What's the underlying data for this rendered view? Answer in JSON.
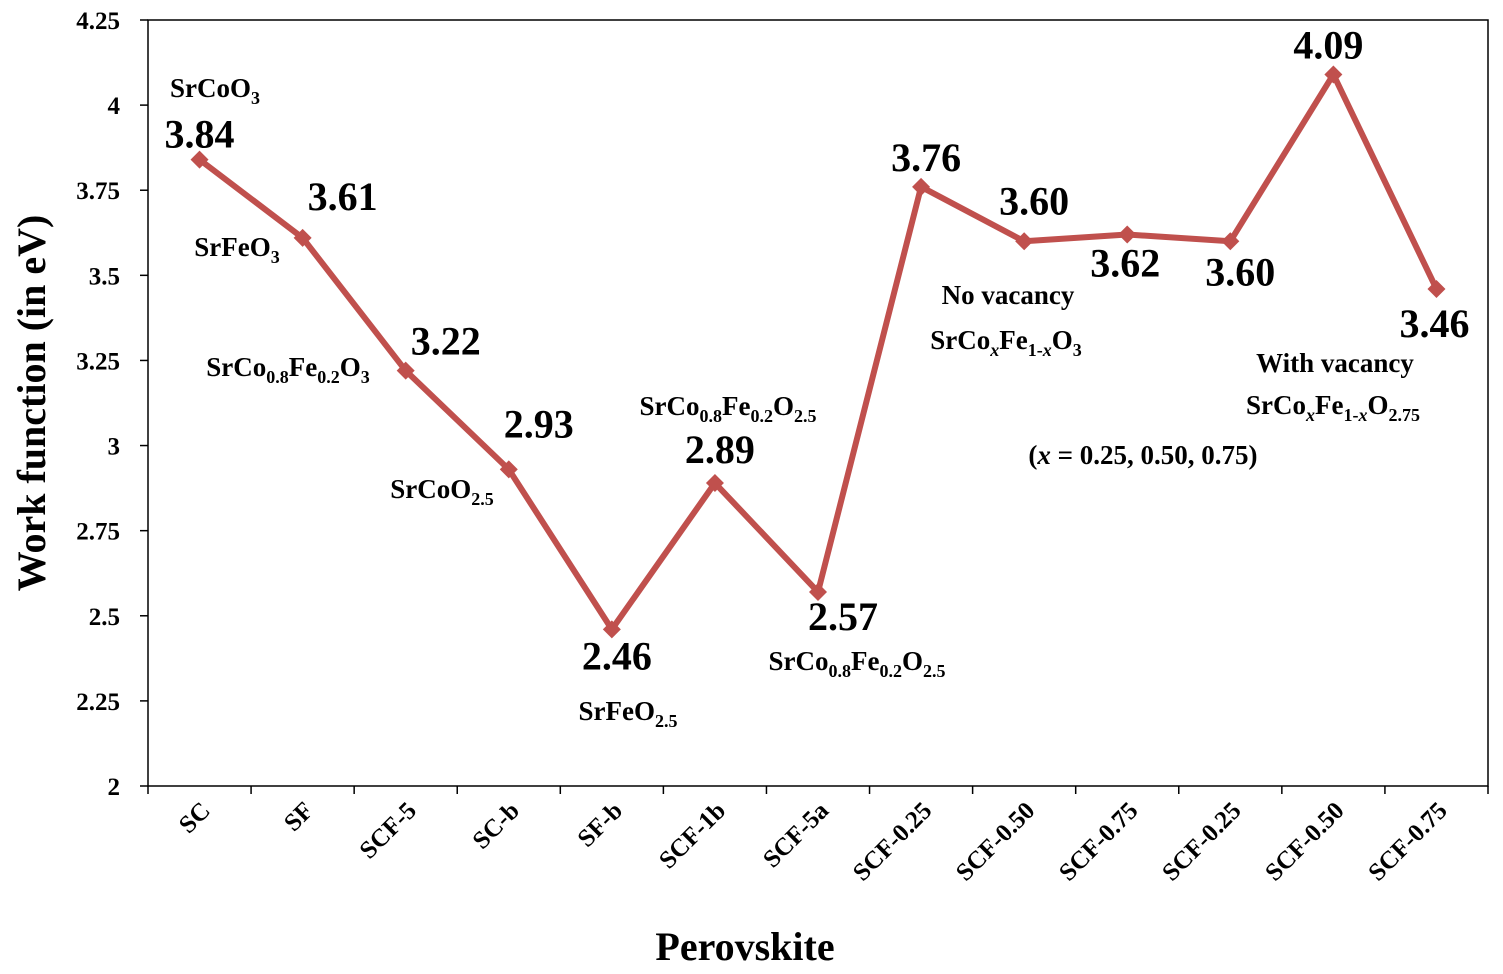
{
  "chart_data": {
    "type": "line",
    "xlabel": "Perovskite",
    "ylabel": "Work function (in eV)",
    "ylim": [
      2,
      4.25
    ],
    "yticks": [
      "2",
      "2.25",
      "2.5",
      "2.75",
      "3",
      "3.25",
      "3.5",
      "3.75",
      "4",
      "4.25"
    ],
    "grid": false,
    "legend": "none",
    "line_color": "#C0504D",
    "categories": [
      "SC",
      "SF",
      "SCF-5",
      "SC-b",
      "SF-b",
      "SCF-1b",
      "SCF-5a",
      "SCF-0.25",
      "SCF-0.50",
      "SCF-0.75",
      "SCF-0.25",
      "SCF-0.50",
      "SCF-0.75"
    ],
    "values": [
      3.84,
      3.61,
      3.22,
      2.93,
      2.46,
      2.89,
      2.57,
      3.76,
      3.6,
      3.62,
      3.6,
      4.09,
      3.46
    ],
    "data_labels": [
      "3.84",
      "3.61",
      "3.22",
      "2.93",
      "2.46",
      "2.89",
      "2.57",
      "3.76",
      "3.60",
      "3.62",
      "3.60",
      "4.09",
      "3.46"
    ],
    "annotations": [
      {
        "parts": [
          [
            "SrCoO",
            "n"
          ],
          [
            "3",
            "sub"
          ]
        ]
      },
      {
        "parts": [
          [
            "SrFeO",
            "n"
          ],
          [
            "3",
            "sub"
          ]
        ]
      },
      {
        "parts": [
          [
            "SrCo",
            "n"
          ],
          [
            "0.8",
            "sub"
          ],
          [
            "Fe",
            "n"
          ],
          [
            "0.2",
            "sub"
          ],
          [
            "O",
            "n"
          ],
          [
            "3",
            "sub"
          ]
        ]
      },
      {
        "parts": [
          [
            "SrCoO",
            "n"
          ],
          [
            "2.5",
            "sub"
          ]
        ]
      },
      {
        "parts": [
          [
            "SrFeO",
            "n"
          ],
          [
            "2.5",
            "sub"
          ]
        ]
      },
      {
        "parts": [
          [
            "SrCo",
            "n"
          ],
          [
            "0.8",
            "sub"
          ],
          [
            "Fe",
            "n"
          ],
          [
            "0.2",
            "sub"
          ],
          [
            "O",
            "n"
          ],
          [
            "2.5",
            "sub"
          ]
        ]
      },
      {
        "parts": [
          [
            "SrCo",
            "n"
          ],
          [
            "0.8",
            "sub"
          ],
          [
            "Fe",
            "n"
          ],
          [
            "0.2",
            "sub"
          ],
          [
            "O",
            "n"
          ],
          [
            "2.5",
            "sub"
          ]
        ]
      },
      {
        "parts": [
          [
            "No vacancy",
            "n"
          ]
        ]
      },
      {
        "parts": [
          [
            "SrCo",
            "n"
          ],
          [
            "x",
            "subi"
          ],
          [
            "Fe",
            "n"
          ],
          [
            "1-",
            "sub"
          ],
          [
            "x",
            "subi"
          ],
          [
            "O",
            "n"
          ],
          [
            "3",
            "sub"
          ]
        ]
      },
      {
        "parts": [
          [
            "With vacancy",
            "n"
          ]
        ]
      },
      {
        "parts": [
          [
            "SrCo",
            "n"
          ],
          [
            "x",
            "subi"
          ],
          [
            "Fe",
            "n"
          ],
          [
            "1-",
            "sub"
          ],
          [
            "x",
            "subi"
          ],
          [
            "O",
            "n"
          ],
          [
            "2.75",
            "sub"
          ]
        ]
      },
      {
        "parts": [
          [
            "(",
            "n"
          ],
          [
            "x",
            "i"
          ],
          [
            " = 0.25, 0.50, 0.75)",
            "n"
          ]
        ]
      }
    ]
  }
}
